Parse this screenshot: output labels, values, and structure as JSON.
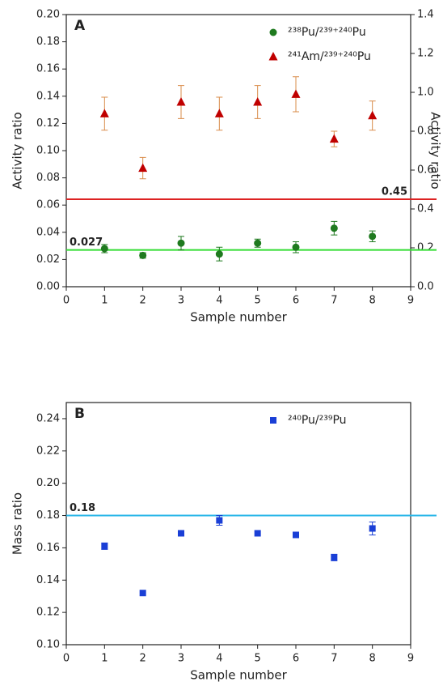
{
  "chart_data": [
    {
      "type": "scatter",
      "panel_label": "A",
      "xlabel": "Sample number",
      "ylabel": "Activity ratio",
      "y2label": "Activity ratio",
      "xlim": [
        0,
        9
      ],
      "xticks": [
        0,
        1,
        2,
        3,
        4,
        5,
        6,
        7,
        8,
        9
      ],
      "ylim": [
        0,
        0.2
      ],
      "yticks": [
        {
          "value": 0,
          "label": "0.00"
        },
        {
          "value": 0.02,
          "label": "0.02"
        },
        {
          "value": 0.04,
          "label": "0.04"
        },
        {
          "value": 0.06,
          "label": "0.06"
        },
        {
          "value": 0.08,
          "label": "0.08"
        },
        {
          "value": 0.1,
          "label": "0.10"
        },
        {
          "value": 0.12,
          "label": "0.12"
        },
        {
          "value": 0.14,
          "label": "0.14"
        },
        {
          "value": 0.16,
          "label": "0.16"
        },
        {
          "value": 0.18,
          "label": "0.18"
        },
        {
          "value": 0.2,
          "label": "0.20"
        }
      ],
      "y2lim": [
        0,
        1.4
      ],
      "y2ticks": [
        {
          "value": 0,
          "label": "0.0"
        },
        {
          "value": 0.2,
          "label": "0.2"
        },
        {
          "value": 0.4,
          "label": "0.4"
        },
        {
          "value": 0.6,
          "label": "0.6"
        },
        {
          "value": 0.8,
          "label": "0.8"
        },
        {
          "value": 1,
          "label": "1.0"
        },
        {
          "value": 1.2,
          "label": "1.2"
        },
        {
          "value": 1.4,
          "label": "1.4"
        }
      ],
      "series": [
        {
          "name": "²³⁸Pu/²³⁹⁺²⁴⁰Pu",
          "color": "#1f7a1f",
          "error_color": "#1f7a1f",
          "marker": "circle",
          "axis": "y",
          "x": [
            1,
            2,
            3,
            4,
            5,
            6,
            7,
            8
          ],
          "values": [
            0.028,
            0.023,
            0.032,
            0.024,
            0.032,
            0.029,
            0.043,
            0.037
          ],
          "errors": [
            0.003,
            0.002,
            0.005,
            0.005,
            0.003,
            0.004,
            0.005,
            0.004
          ]
        },
        {
          "name": "²⁴¹Am/²³⁹⁺²⁴⁰Pu",
          "color": "#c00000",
          "error_color": "#d98c4a",
          "marker": "triangle",
          "axis": "y2",
          "x": [
            1,
            2,
            3,
            4,
            5,
            6,
            7,
            8
          ],
          "values": [
            0.89,
            0.61,
            0.95,
            0.89,
            0.95,
            0.99,
            0.76,
            0.88
          ],
          "errors": [
            0.085,
            0.055,
            0.085,
            0.085,
            0.085,
            0.09,
            0.04,
            0.075
          ]
        }
      ],
      "reference_lines": [
        {
          "value": 0.027,
          "color": "#33dd33",
          "axis": "y"
        },
        {
          "value": 0.45,
          "color": "#dd2222",
          "axis": "y2"
        }
      ],
      "legend": "upper right"
    },
    {
      "type": "scatter",
      "panel_label": "B",
      "xlabel": "Sample number",
      "ylabel": "Mass ratio",
      "xlim": [
        0,
        9
      ],
      "xticks": [
        0,
        1,
        2,
        3,
        4,
        5,
        6,
        7,
        8,
        9
      ],
      "ylim": [
        0.1,
        0.25
      ],
      "yticks": [
        {
          "value": 0.1,
          "label": "0.10"
        },
        {
          "value": 0.12,
          "label": "0.12"
        },
        {
          "value": 0.14,
          "label": "0.14"
        },
        {
          "value": 0.16,
          "label": "0.16"
        },
        {
          "value": 0.18,
          "label": "0.18"
        },
        {
          "value": 0.2,
          "label": "0.20"
        },
        {
          "value": 0.22,
          "label": "0.22"
        },
        {
          "value": 0.24,
          "label": "0.24"
        }
      ],
      "series": [
        {
          "name": "²⁴⁰Pu/²³⁹Pu",
          "color": "#1a3fd6",
          "error_color": "#1a3fd6",
          "marker": "square",
          "axis": "y",
          "x": [
            1,
            2,
            3,
            4,
            5,
            6,
            7,
            8
          ],
          "values": [
            0.161,
            0.132,
            0.169,
            0.177,
            0.169,
            0.168,
            0.154,
            0.172
          ],
          "errors": [
            0.002,
            0,
            0,
            0.003,
            0,
            0,
            0.002,
            0.004
          ]
        }
      ],
      "reference_lines": [
        {
          "value": 0.18,
          "color": "#29b6e8",
          "axis": "y"
        }
      ],
      "legend": "upper right"
    }
  ]
}
